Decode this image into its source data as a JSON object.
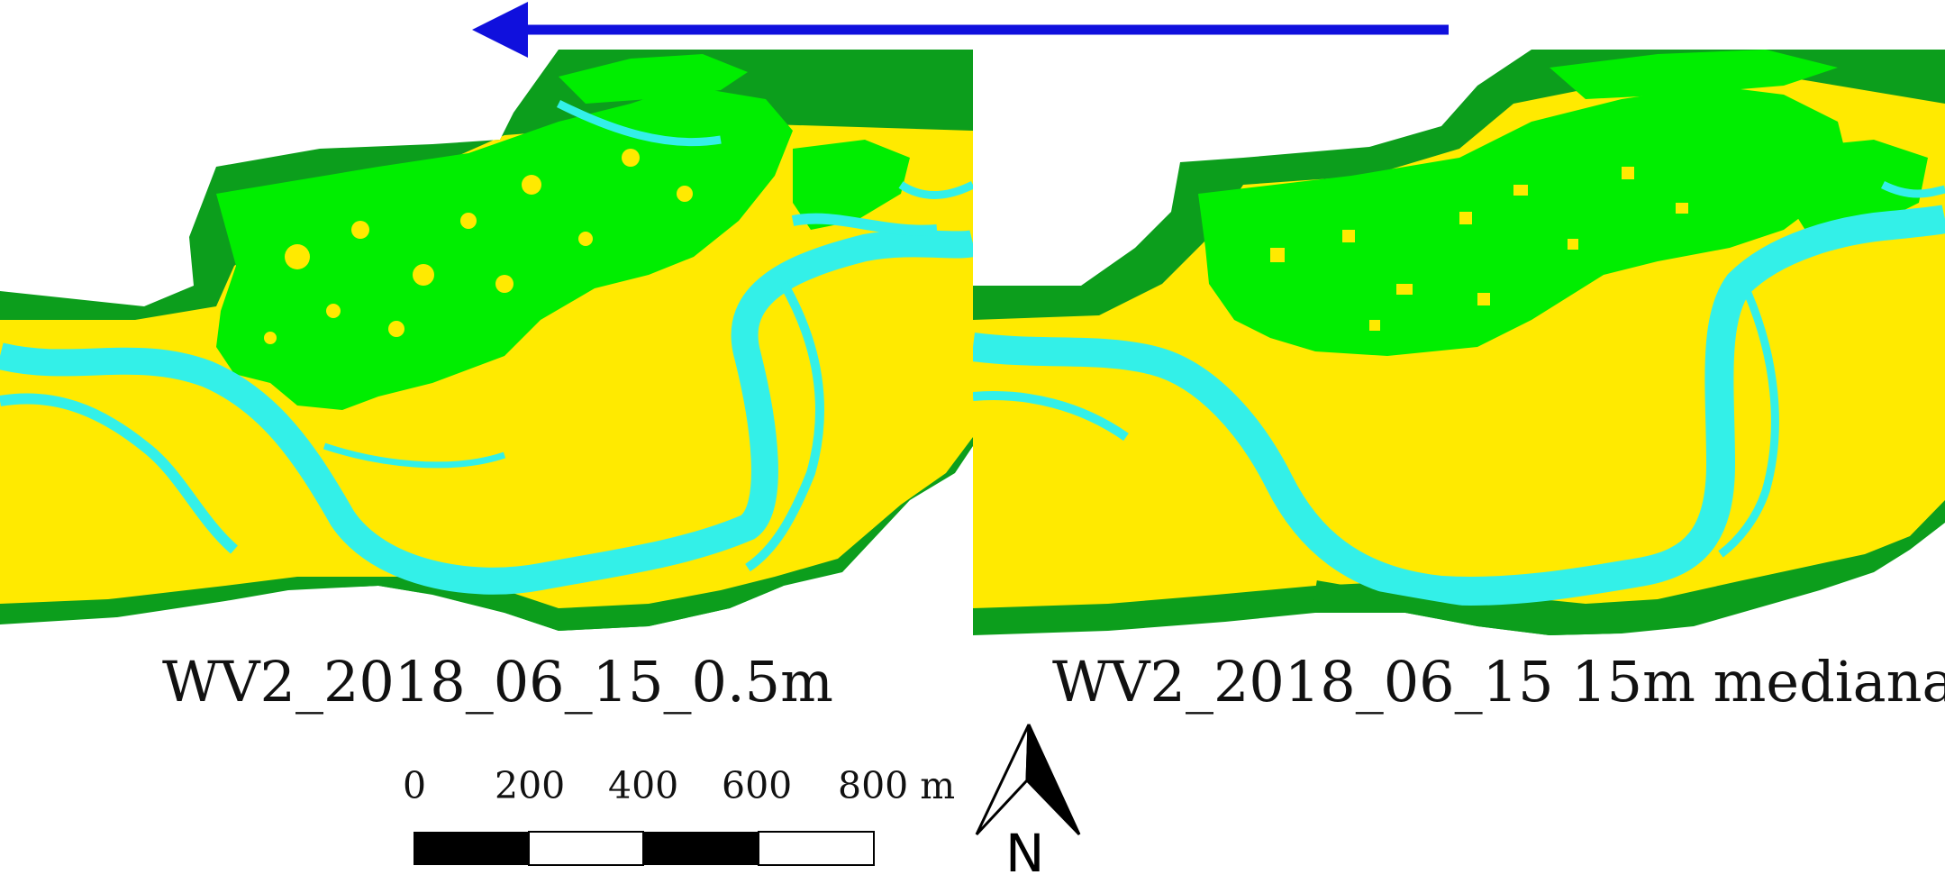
{
  "legend_colors": {
    "water": "#33f0e8",
    "gravel_bar": "#ffea00",
    "vegetation_light": "#00ee00",
    "vegetation_dark": "#0c9e1c",
    "flow_arrow": "#1010dd"
  },
  "panels": [
    {
      "title": "WV2_2018_06_15_0.5m"
    },
    {
      "title": "WV2_2018_06_15 15m mediana"
    }
  ],
  "scale_bar": {
    "ticks": [
      "0",
      "200",
      "400",
      "600",
      "800 m"
    ]
  },
  "north_arrow": {
    "letter": "N"
  },
  "flow_arrow": {
    "direction": "left",
    "icon": "flow-direction-arrow-icon"
  }
}
